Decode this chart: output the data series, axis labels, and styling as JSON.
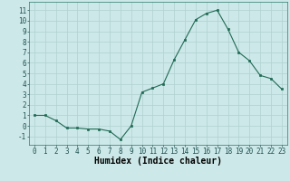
{
  "x": [
    0,
    1,
    2,
    3,
    4,
    5,
    6,
    7,
    8,
    9,
    10,
    11,
    12,
    13,
    14,
    15,
    16,
    17,
    18,
    19,
    20,
    21,
    22,
    23
  ],
  "y": [
    1,
    1,
    0.5,
    -0.2,
    -0.2,
    -0.3,
    -0.3,
    -0.5,
    -1.3,
    0,
    3.2,
    3.6,
    4.0,
    6.3,
    8.2,
    10.1,
    10.7,
    11.0,
    9.2,
    7.0,
    6.2,
    4.8,
    4.5,
    3.5
  ],
  "line_color": "#1f6b55",
  "marker": "s",
  "marker_size": 2.0,
  "bg_color": "#cde8e8",
  "grid_color": "#b0d0d0",
  "xlabel": "Humidex (Indice chaleur)",
  "ylim": [
    -1.8,
    11.8
  ],
  "xlim": [
    -0.5,
    23.5
  ],
  "yticks": [
    -1,
    0,
    1,
    2,
    3,
    4,
    5,
    6,
    7,
    8,
    9,
    10,
    11
  ],
  "xticks": [
    0,
    1,
    2,
    3,
    4,
    5,
    6,
    7,
    8,
    9,
    10,
    11,
    12,
    13,
    14,
    15,
    16,
    17,
    18,
    19,
    20,
    21,
    22,
    23
  ],
  "axis_fontsize": 6.5,
  "tick_fontsize": 5.5,
  "xlabel_fontsize": 7.0
}
